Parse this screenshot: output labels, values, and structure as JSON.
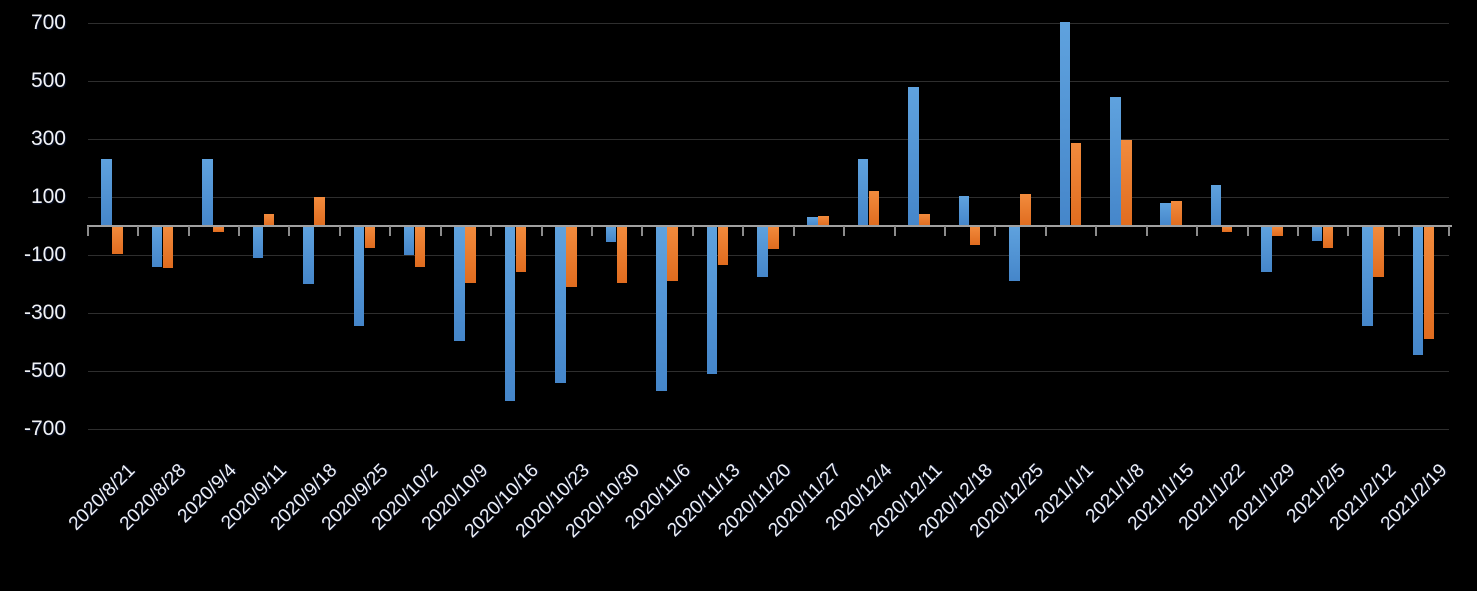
{
  "chart_data": {
    "type": "bar",
    "title": "",
    "legend": "none",
    "grid": "horizontal",
    "background_color": "#000000",
    "axis_color": "#a0a0a0",
    "gridline_color": "#2e2e2e",
    "label_color": "#f0f2f6",
    "yticks": [
      700,
      500,
      300,
      100,
      -100,
      -300,
      -500,
      -700
    ],
    "ylim": [
      -760,
      760
    ],
    "categories": [
      "2020/8/21",
      "2020/8/28",
      "2020/9/4",
      "2020/9/11",
      "2020/9/18",
      "2020/9/25",
      "2020/10/2",
      "2020/10/9",
      "2020/10/16",
      "2020/10/23",
      "2020/10/30",
      "2020/11/6",
      "2020/11/13",
      "2020/11/20",
      "2020/11/27",
      "2020/12/4",
      "2020/12/11",
      "2020/12/18",
      "2020/12/25",
      "2021/1/1",
      "2021/1/8",
      "2021/1/15",
      "2021/1/22",
      "2021/1/29",
      "2021/2/5",
      "2021/2/12",
      "2021/2/19"
    ],
    "series": [
      {
        "id": "series-blue",
        "color": "#5B9BD5",
        "values": [
          230,
          -140,
          230,
          -110,
          -200,
          -345,
          -100,
          -395,
          -605,
          -540,
          -55,
          -570,
          -510,
          -175,
          30,
          230,
          480,
          105,
          -190,
          705,
          445,
          80,
          140,
          -160,
          -50,
          -345,
          -445
        ]
      },
      {
        "id": "series-orange",
        "color": "#ED7D31",
        "values": [
          -95,
          -145,
          -20,
          40,
          100,
          -75,
          -140,
          -195,
          -160,
          -210,
          -195,
          -190,
          -135,
          -80,
          35,
          120,
          40,
          -65,
          110,
          285,
          295,
          85,
          -20,
          -35,
          -75,
          -175,
          -390
        ]
      }
    ]
  }
}
